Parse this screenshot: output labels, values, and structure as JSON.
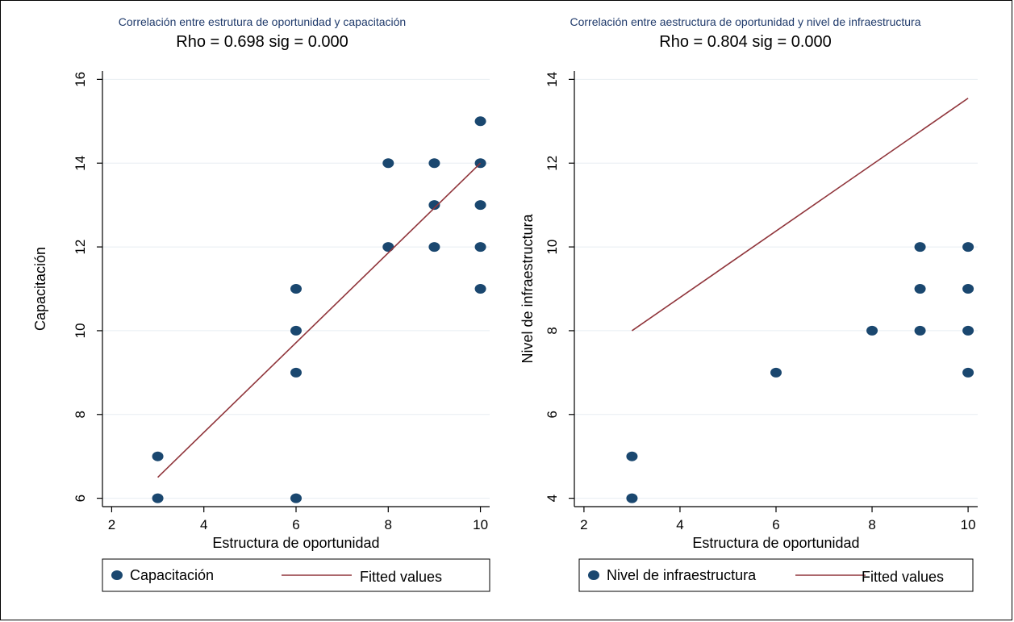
{
  "chart_data": [
    {
      "type": "scatter",
      "title": "Correlación entre estrutura de oportunidad y capacitación",
      "subtitle": "Rho = 0.698 sig = 0.000",
      "xlabel": "Estructura de oportunidad",
      "ylabel": "Capacitación",
      "xlim": [
        1.8,
        10.2
      ],
      "ylim": [
        5.8,
        16.2
      ],
      "xticks": [
        2,
        4,
        6,
        8,
        10
      ],
      "yticks": [
        6,
        8,
        10,
        12,
        14,
        16
      ],
      "grid": true,
      "legend_position": "bottom",
      "series": [
        {
          "name": "Capacitación",
          "kind": "scatter",
          "color": "#1a476f",
          "points": [
            [
              3,
              7
            ],
            [
              3,
              6
            ],
            [
              6,
              11
            ],
            [
              6,
              10
            ],
            [
              6,
              9
            ],
            [
              6,
              6
            ],
            [
              8,
              14
            ],
            [
              8,
              12
            ],
            [
              9,
              14
            ],
            [
              9,
              13
            ],
            [
              9,
              12
            ],
            [
              10,
              15
            ],
            [
              10,
              14
            ],
            [
              10,
              13
            ],
            [
              10,
              12
            ],
            [
              10,
              11
            ]
          ]
        },
        {
          "name": "Fitted values",
          "kind": "line",
          "color": "#90353b",
          "points": [
            [
              3,
              6.5
            ],
            [
              10,
              14
            ]
          ]
        }
      ]
    },
    {
      "type": "scatter",
      "title": "Correlación entre aestructura de oportunidad y nivel de infraestructura",
      "subtitle": "Rho = 0.804 sig = 0.000",
      "xlabel": "Estructura de oportunidad",
      "ylabel": "Nivel de infraestructura",
      "xlim": [
        1.8,
        10.2
      ],
      "ylim": [
        3.8,
        14.2
      ],
      "xticks": [
        2,
        4,
        6,
        8,
        10
      ],
      "yticks": [
        4,
        6,
        8,
        10,
        12,
        14
      ],
      "grid": true,
      "legend_position": "bottom",
      "series": [
        {
          "name": "Nivel de infraestructura",
          "kind": "scatter",
          "color": "#1a476f",
          "points": [
            [
              3,
              5
            ],
            [
              3,
              4
            ],
            [
              6,
              7
            ],
            [
              8,
              8
            ],
            [
              9,
              10
            ],
            [
              9,
              9
            ],
            [
              9,
              8
            ],
            [
              10,
              10
            ],
            [
              10,
              9
            ],
            [
              10,
              8
            ],
            [
              10,
              7
            ]
          ]
        },
        {
          "name": "Fitted values",
          "kind": "line",
          "color": "#90353b",
          "points": [
            [
              3,
              8
            ],
            [
              10,
              13.55
            ]
          ]
        }
      ]
    }
  ]
}
